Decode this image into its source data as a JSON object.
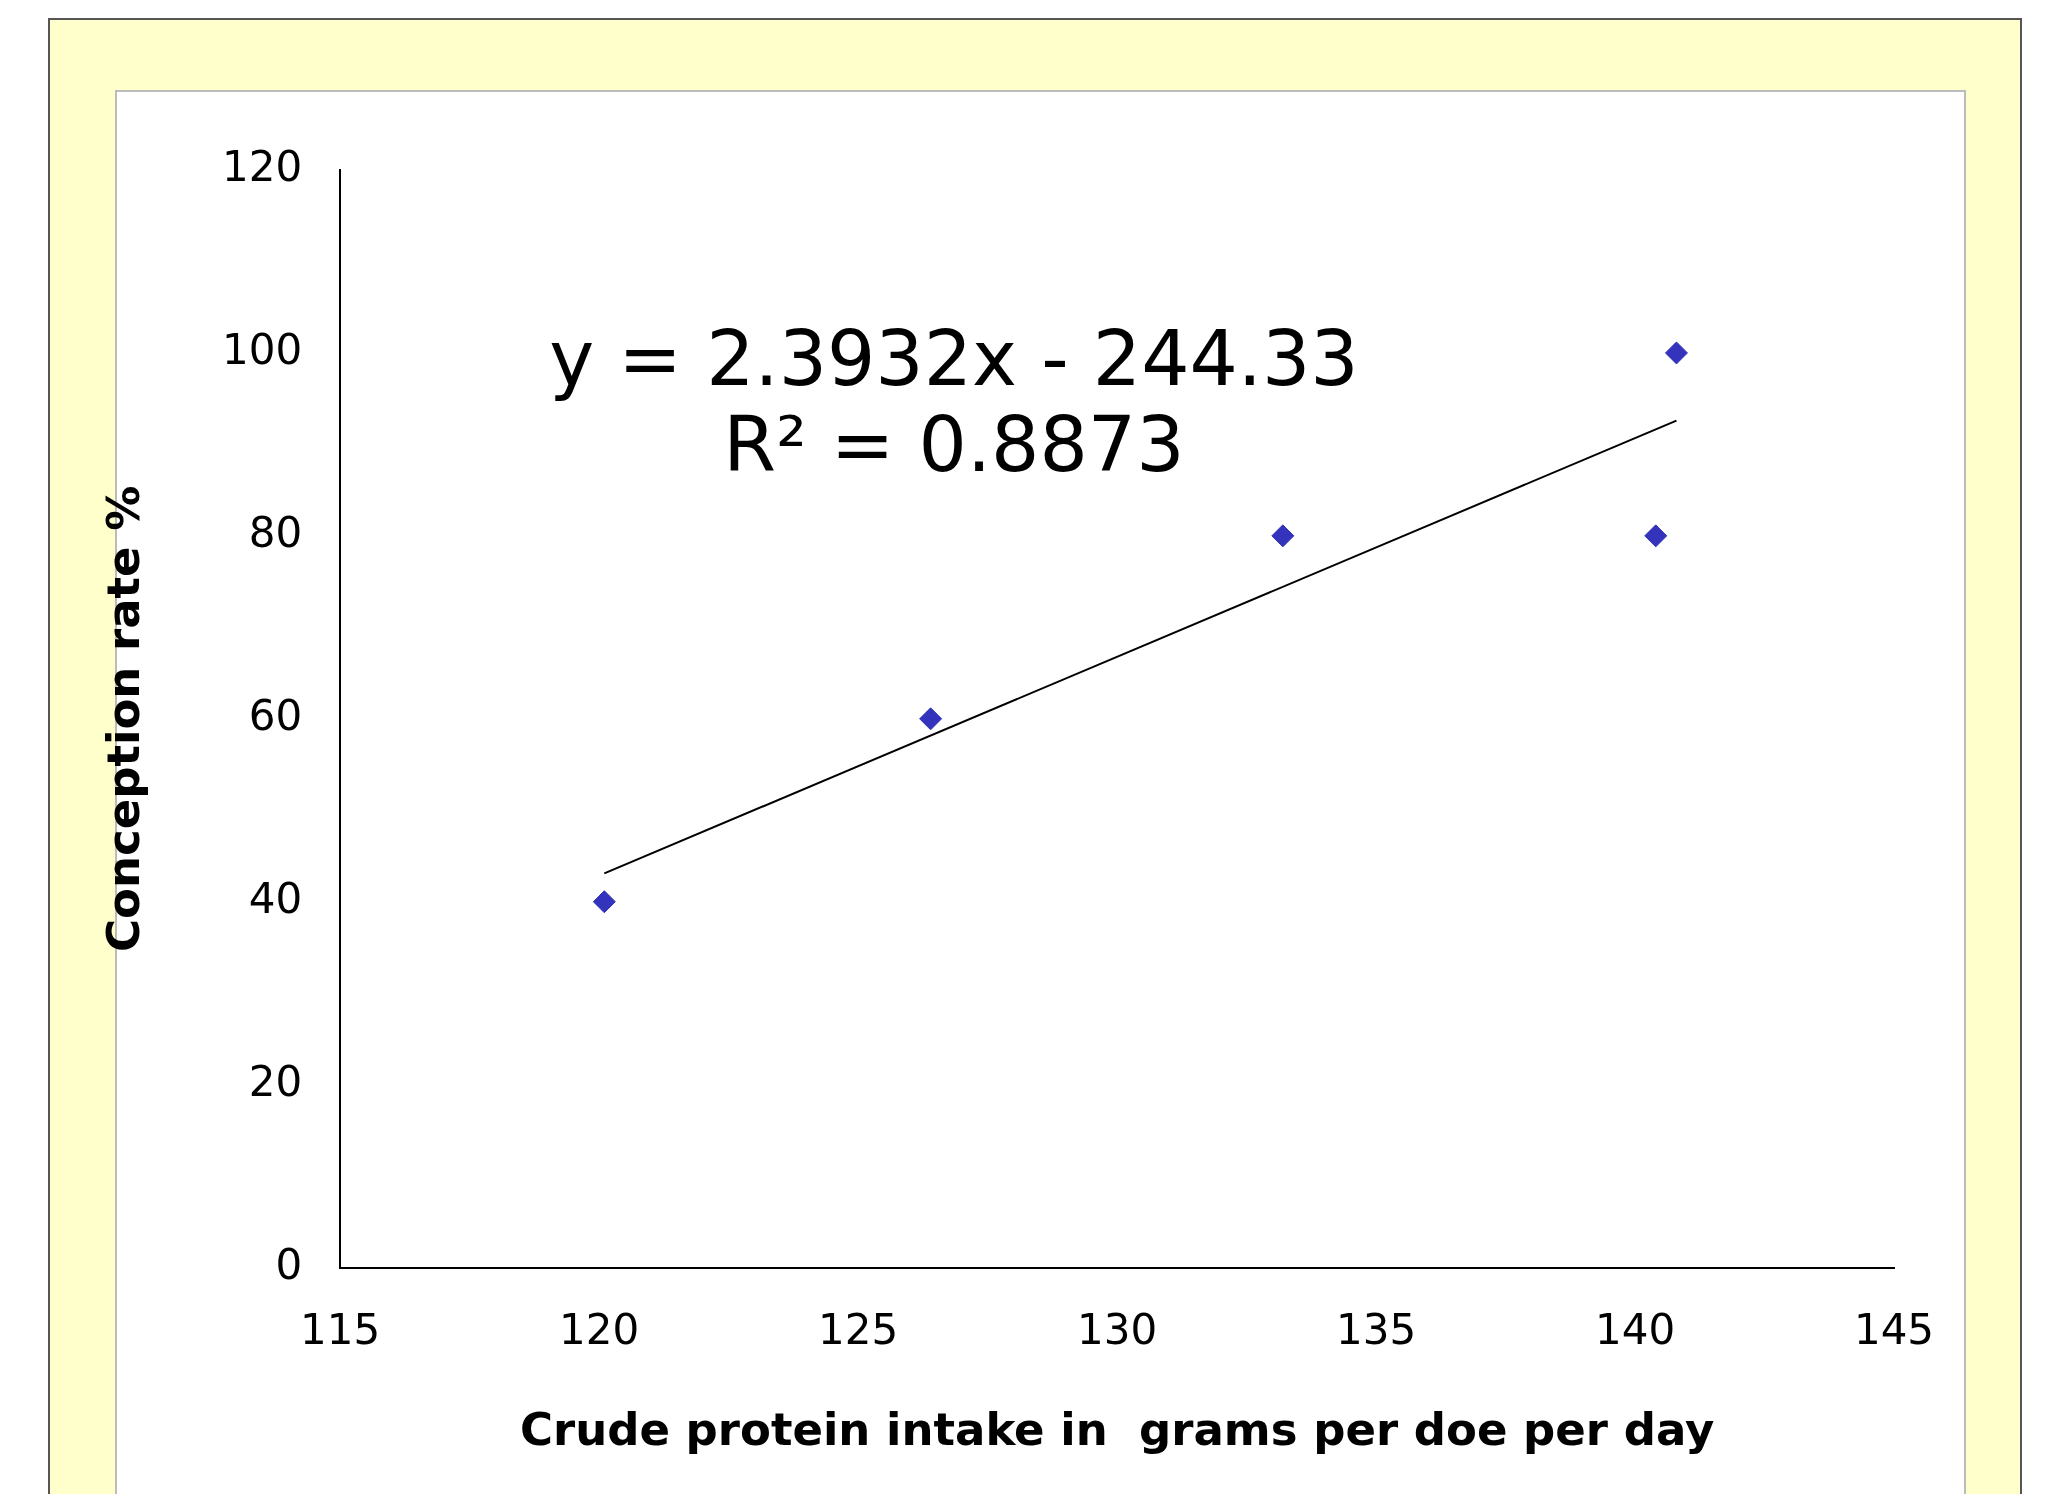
{
  "chart_data": {
    "type": "scatter",
    "xlabel": "Crude protein intake in  grams per doe per day",
    "ylabel": "Conception rate %",
    "annotations": [
      "y = 2.3932x - 244.33",
      "R² = 0.8873"
    ],
    "xlim": [
      115,
      145
    ],
    "xticks": [
      115,
      120,
      125,
      130,
      135,
      140,
      145
    ],
    "ylim": [
      0,
      120
    ],
    "yticks": [
      0,
      20,
      40,
      60,
      80,
      100,
      120
    ],
    "grid": false,
    "legend": false,
    "marker": "diamond",
    "series": [
      {
        "type": "scatter",
        "color": "#3333bb",
        "x": [
          120.1,
          126.4,
          133.2,
          140.4,
          140.8
        ],
        "values": [
          40,
          60,
          80,
          80,
          100
        ]
      },
      {
        "type": "line",
        "color": "#000000",
        "marker": "none",
        "line_style": "solid",
        "x": [
          120.1,
          140.8
        ],
        "values": [
          43.1,
          92.6
        ]
      }
    ]
  }
}
